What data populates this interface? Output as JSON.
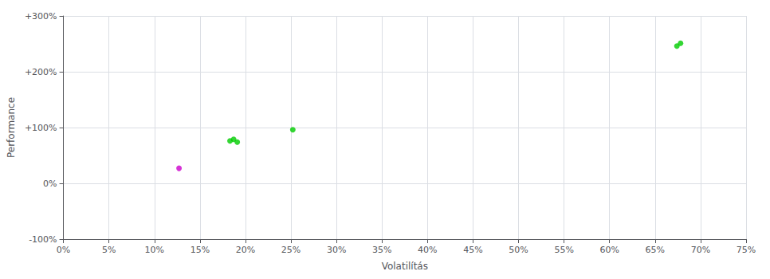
{
  "chart_data": {
    "type": "scatter",
    "xlabel": "Volatilítás",
    "ylabel": "Performance",
    "x": [
      0.127,
      0.183,
      0.187,
      0.191,
      0.252,
      0.674,
      0.678
    ],
    "values": [
      0.27,
      0.76,
      0.79,
      0.74,
      0.96,
      2.46,
      2.51
    ],
    "colors": [
      "#cc00cc",
      "#00cc00",
      "#00cc00",
      "#00cc00",
      "#00cc00",
      "#00cc00",
      "#00cc00"
    ],
    "xlim": [
      0.0,
      0.75
    ],
    "ylim": [
      -1.0,
      3.0
    ],
    "xticks": [
      {
        "value": 0.0,
        "label": "0%"
      },
      {
        "value": 0.05,
        "label": "5%"
      },
      {
        "value": 0.1,
        "label": "10%"
      },
      {
        "value": 0.15,
        "label": "15%"
      },
      {
        "value": 0.2,
        "label": "20%"
      },
      {
        "value": 0.25,
        "label": "25%"
      },
      {
        "value": 0.3,
        "label": "30%"
      },
      {
        "value": 0.35,
        "label": "35%"
      },
      {
        "value": 0.4,
        "label": "40%"
      },
      {
        "value": 0.45,
        "label": "45%"
      },
      {
        "value": 0.5,
        "label": "50%"
      },
      {
        "value": 0.55,
        "label": "55%"
      },
      {
        "value": 0.6,
        "label": "60%"
      },
      {
        "value": 0.65,
        "label": "65%"
      },
      {
        "value": 0.7,
        "label": "70%"
      },
      {
        "value": 0.75,
        "label": "75%"
      }
    ],
    "yticks": [
      {
        "value": -1.0,
        "label": "-100%"
      },
      {
        "value": 0.0,
        "label": "0%"
      },
      {
        "value": 1.0,
        "label": "+100%"
      },
      {
        "value": 2.0,
        "label": "+200%"
      },
      {
        "value": 3.0,
        "label": "+300%"
      }
    ],
    "grid": true
  }
}
